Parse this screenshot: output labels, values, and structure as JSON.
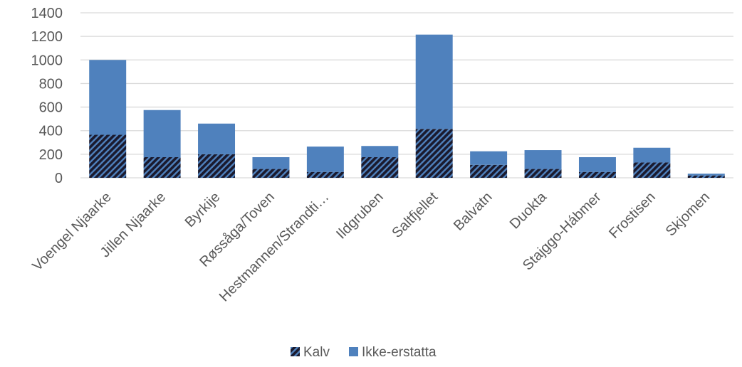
{
  "chart_data": {
    "type": "bar",
    "stacked": true,
    "categories": [
      "Voengel Njaarke",
      "Jillen Njaarke",
      "Byrkije",
      "Røssåga/Toven",
      "Hestmannen/Strandti…",
      "Ildgruben",
      "Saltfjellet",
      "Balvatn",
      "Duokta",
      "Stajggo-Hábmer",
      "Frostisen",
      "Skjomen"
    ],
    "series": [
      {
        "name": "Kalv",
        "values": [
          365,
          175,
          200,
          75,
          50,
          175,
          415,
          110,
          75,
          50,
          130,
          20
        ],
        "color": "#1f3864",
        "pattern": "diagonal-hatch"
      },
      {
        "name": "Ikke-erstatta",
        "values": [
          635,
          400,
          260,
          100,
          215,
          95,
          800,
          115,
          160,
          125,
          125,
          15
        ],
        "color": "#4f81bd"
      }
    ],
    "ylim": [
      0,
      1400
    ],
    "yticks": [
      0,
      200,
      400,
      600,
      800,
      1000,
      1200,
      1400
    ],
    "grid": true,
    "legend_position": "bottom",
    "title": "",
    "xlabel": "",
    "ylabel": ""
  }
}
